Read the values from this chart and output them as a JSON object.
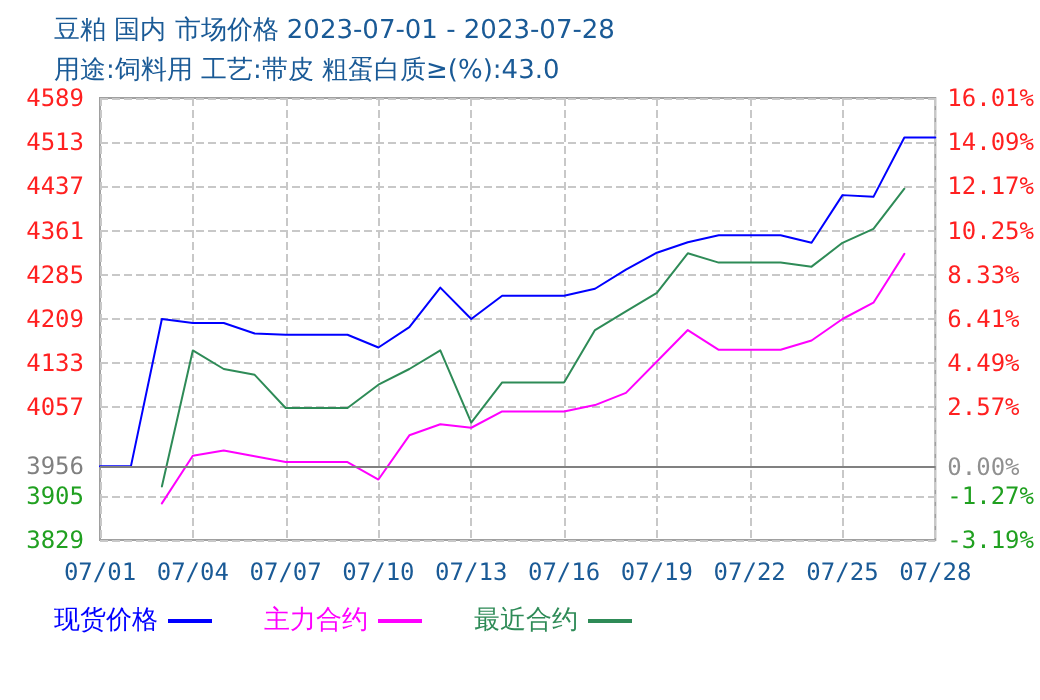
{
  "chart_data": {
    "type": "line",
    "title": "豆粕 国内 市场价格 2023-07-01 - 2023-07-28",
    "subtitle": "用途:饲料用 工艺:带皮 粗蛋白质≥(%):43.0",
    "categories": [
      "07/01",
      null,
      null,
      "07/04",
      null,
      null,
      "07/07",
      null,
      null,
      "07/10",
      null,
      null,
      "07/13",
      null,
      null,
      "07/16",
      null,
      null,
      "07/19",
      null,
      null,
      "07/22",
      null,
      null,
      "07/25",
      null,
      null,
      "07/28"
    ],
    "series": [
      {
        "name": "现货价格",
        "color": "#0000ff",
        "values": [
          3956,
          3956,
          4209,
          4202,
          4202,
          4184,
          4182,
          4182,
          4182,
          4160,
          4195,
          4263,
          4209,
          4249,
          4249,
          4249,
          4261,
          4294,
          4323,
          4341,
          4353,
          4353,
          4353,
          4340,
          4422,
          4419,
          4521,
          4521
        ]
      },
      {
        "name": "主力合约",
        "color": "#ff00ff",
        "values": [
          null,
          null,
          3892,
          3974,
          3983,
          3973,
          3963,
          3963,
          3963,
          3933,
          4009,
          4028,
          4022,
          4050,
          4050,
          4050,
          4061,
          4082,
          4136,
          4190,
          4156,
          4156,
          4156,
          4172,
          4209,
          4237,
          4321,
          null
        ]
      },
      {
        "name": "最近合约",
        "color": "#2e8b57",
        "values": [
          null,
          null,
          3921,
          4155,
          4123,
          4113,
          4056,
          4056,
          4056,
          4096,
          4123,
          4155,
          4031,
          4100,
          4100,
          4100,
          4190,
          4222,
          4254,
          4322,
          4306,
          4306,
          4306,
          4299,
          4340,
          4364,
          4433,
          null
        ]
      }
    ],
    "ylim": [
      3829,
      4589
    ],
    "yticks": [
      3829,
      3905,
      4057,
      4133,
      4209,
      4285,
      4361,
      4437,
      4513,
      4589
    ],
    "y2lim": [
      -3.19,
      16.01
    ],
    "y2ticks": [
      {
        "value": -3.19,
        "label": "-3.19%"
      },
      {
        "value": -1.27,
        "label": "-1.27%"
      },
      {
        "value": 0,
        "label": "0.00%"
      },
      {
        "value": 2.57,
        "label": "2.57%"
      },
      {
        "value": 4.49,
        "label": "4.49%"
      },
      {
        "value": 6.41,
        "label": "6.41%"
      },
      {
        "value": 8.33,
        "label": "8.33%"
      },
      {
        "value": 10.25,
        "label": "10.25%"
      },
      {
        "value": 12.17,
        "label": "12.17%"
      },
      {
        "value": 14.09,
        "label": "14.09%"
      },
      {
        "value": 16.01,
        "label": "16.01%"
      }
    ],
    "ref_lines": [
      {
        "axis": "y",
        "value": 3956,
        "label": "3956",
        "color": "#808080"
      }
    ],
    "grid": true,
    "legend": "bottom",
    "marker": "none",
    "line_style": "solid"
  }
}
